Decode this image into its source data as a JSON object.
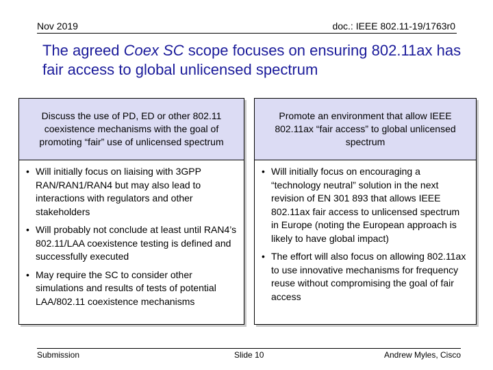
{
  "header": {
    "date": "Nov 2019",
    "doc_id": "doc.: IEEE 802.11-19/1763r0"
  },
  "title": {
    "part1": "The agreed ",
    "part2_italic": "Coex SC",
    "part3": " scope focuses on ensuring 802.11ax has fair access to global unlicensed spectrum"
  },
  "left_box": {
    "heading": "Discuss the use of PD, ED or other 802.11 coexistence mechanisms with the goal of promoting “fair” use of unlicensed spectrum",
    "bullets": [
      "Will initially focus on liaising with 3GPP RAN/RAN1/RAN4 but may also lead to interactions with regulators and other stakeholders",
      "Will probably not conclude at least until RAN4’s 802.11/LAA coexistence testing is defined and successfully executed",
      "May require the SC to consider other simulations and results of tests of potential LAA/802.11 coexistence mechanisms"
    ]
  },
  "right_box": {
    "heading": "Promote an environment that allow IEEE 802.11ax “fair access” to global unlicensed spectrum",
    "bullets": [
      "Will initially focus on encouraging a “technology neutral” solution in the next revision of EN 301 893 that allows IEEE 802.11ax fair access to unlicensed spectrum in Europe (noting the European approach is likely to have global impact)",
      "The effort will also focus on allowing 802.11ax to use innovative mechanisms for frequency reuse without compromising the goal of fair access"
    ]
  },
  "bullet_glyph": "•",
  "footer": {
    "left": "Submission",
    "center": "Slide 10",
    "right": "Andrew Myles, Cisco"
  },
  "colors": {
    "title": "#1a1a9a",
    "box_heading_bg": "#dcdcf4"
  }
}
